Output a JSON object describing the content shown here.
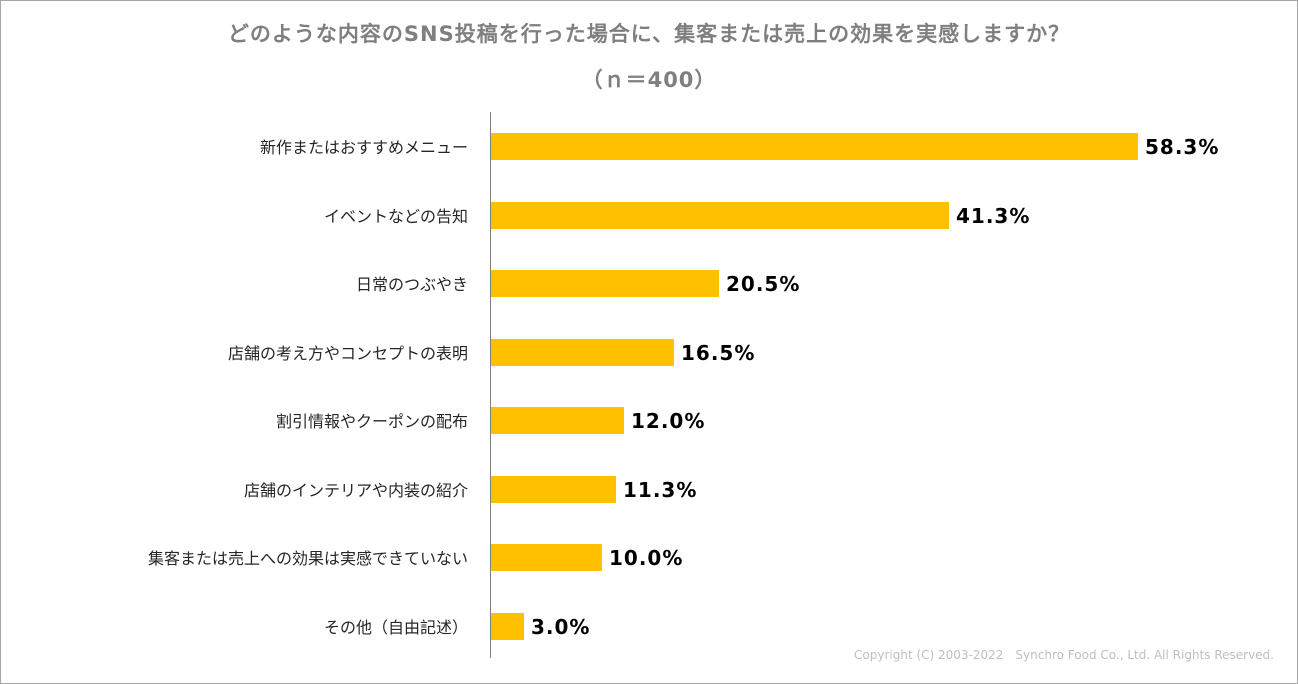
{
  "chart_data": {
    "type": "bar",
    "orientation": "horizontal",
    "title": "どのような内容のSNS投稿を行った場合に、集客または売上の効果を実感しますか？",
    "subtitle": "（ｎ＝400）",
    "categories": [
      "新作またはおすすめメニュー",
      "イベントなどの告知",
      "日常のつぶやき",
      "店舗の考え方やコンセプトの表明",
      "割引情報やクーポンの配布",
      "店舗のインテリアや内装の紹介",
      "集客または売上への効果は実感できていない",
      "その他（自由記述）"
    ],
    "values": [
      58.3,
      41.3,
      20.5,
      16.5,
      12.0,
      11.3,
      10.0,
      3.0
    ],
    "value_labels": [
      "58.3%",
      "41.3%",
      "20.5%",
      "16.5%",
      "12.0%",
      "11.3%",
      "10.0%",
      "3.0%"
    ],
    "unit": "%",
    "xlim": [
      0,
      60
    ],
    "grid": false,
    "legend": "none",
    "bar_color": "#ffc000"
  },
  "footer": {
    "copyright": "Copyright (C) 2003-2022　Synchro Food Co., Ltd. All Rights Reserved."
  }
}
